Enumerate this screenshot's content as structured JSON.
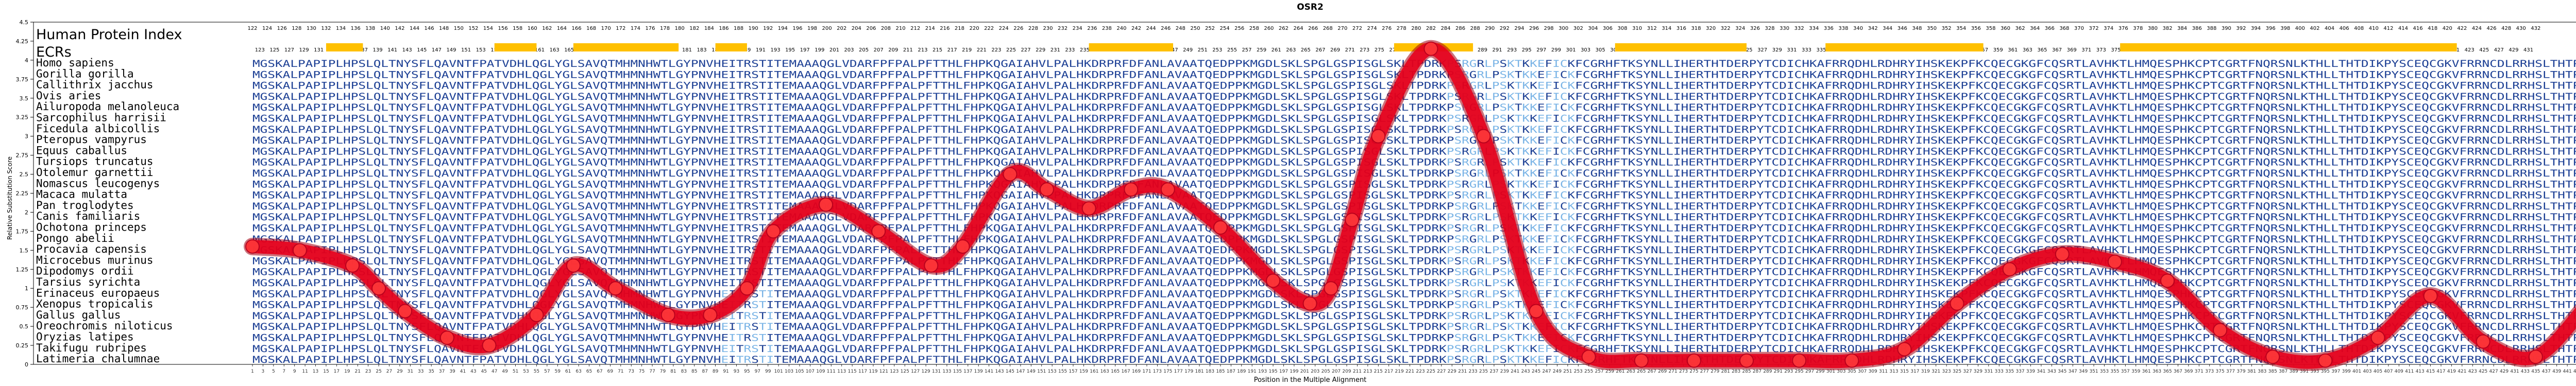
{
  "chart_data": {
    "type": "line",
    "title": "OSR2",
    "xlabel": "Position in the Multiple Alignment",
    "ylabel": "Relative Substitution Score",
    "xlim": [
      1,
      450
    ],
    "ylim": [
      0,
      4.5
    ],
    "y_ticks": [
      0,
      0.25,
      0.5,
      0.75,
      1,
      1.25,
      1.5,
      1.75,
      2,
      2.25,
      2.5,
      2.75,
      3,
      3.25,
      3.5,
      3.75,
      4,
      4.25,
      4.5
    ],
    "x_tick_step": 2,
    "x_tick_start": 1,
    "grid": false,
    "line_color": "#e8001c",
    "series": [
      {
        "x": [
          1,
          10,
          20,
          25,
          30,
          38,
          46,
          55,
          62,
          70,
          80,
          88,
          95,
          100,
          110,
          120,
          130,
          136,
          145,
          152,
          160,
          168,
          175,
          185,
          195,
          202,
          206,
          210,
          215,
          225,
          235,
          245,
          255,
          265,
          275,
          285,
          295,
          305,
          315,
          325,
          335,
          345,
          355,
          365,
          375,
          385,
          395,
          405,
          415,
          425,
          435,
          445,
          450
        ],
        "values": [
          1.55,
          1.5,
          1.3,
          1.0,
          0.7,
          0.35,
          0.25,
          0.65,
          1.3,
          1.0,
          0.65,
          0.65,
          1.0,
          1.75,
          2.1,
          1.75,
          1.3,
          1.55,
          2.5,
          2.3,
          2.05,
          2.3,
          2.3,
          1.8,
          1.1,
          0.8,
          1.0,
          1.9,
          3.0,
          4.15,
          3.0,
          0.7,
          0.1,
          0.05,
          0.05,
          0.05,
          0.05,
          0.05,
          0.2,
          0.8,
          1.25,
          1.45,
          1.35,
          1.1,
          0.45,
          0.1,
          0.05,
          0.35,
          0.9,
          0.3,
          0.1,
          0.8,
          1.15
        ]
      }
    ]
  },
  "legend_panel": {
    "heading": "Human Protein Index",
    "ecr_label": "ECRs",
    "ecr_color": "#ffc000",
    "ecr_blocks": [
      [
        15,
        22
      ],
      [
        47,
        55
      ],
      [
        62,
        82
      ],
      [
        89,
        95
      ],
      [
        160,
        176
      ],
      [
        218,
        233
      ],
      [
        260,
        285
      ],
      [
        300,
        330
      ],
      [
        356,
        420
      ]
    ]
  },
  "species": [
    "Homo sapiens",
    "Gorilla gorilla",
    "Callithrix jacchus",
    "Ovis aries",
    "Ailuropoda melanoleuca",
    "Sarcophilus harrisii",
    "Ficedula albicollis",
    "Pteropus vampyrus",
    "Equus caballus",
    "Tursiops truncatus",
    "Otolemur garnettii",
    "Nomascus leucogenys",
    "Macaca mulatta",
    "Pan troglodytes",
    "Canis familiaris",
    "Ochotona princeps",
    "Pongo abelii",
    "Procavia capensis",
    "Microcebus murinus",
    "Dipodomys ordii",
    "Tarsius syrichta",
    "Erinaceus europaeus",
    "Xenopus tropicalis",
    "Gallus gallus",
    "Oreochromis niloticus",
    "Oryzias latipes",
    "Takifugu rubripes",
    "Latimeria chalumnae"
  ],
  "sequence_template": "MGSKALPAPIPLHPSLQLTNYSFLQAVNTFPATVDHLQGLYGLSAVQTMHMNHWTLGYPNVHEITRSTITEMAAAQGLVDARFPFPALPFTTHLFHPKQGAIAHVLPALHKDRPRFDFANLAVAATQEDPPKMGDLSKLSPGLGSPISGLSKLTPDRKPSRGRLPSKTKKEFICKFCGRHFTKSYNLLIHERTHTDERPYTCDICHKAFRRQDHLRDHRYIHSKEKPFKCQECGKGFCQSRTLAVHKTLHMQESPHKCPTCGRTFNQRSNLKTHLLTHTDIKPYSCEQCGKVFRRNCDLRRHSLTHTPRQDF"
}
